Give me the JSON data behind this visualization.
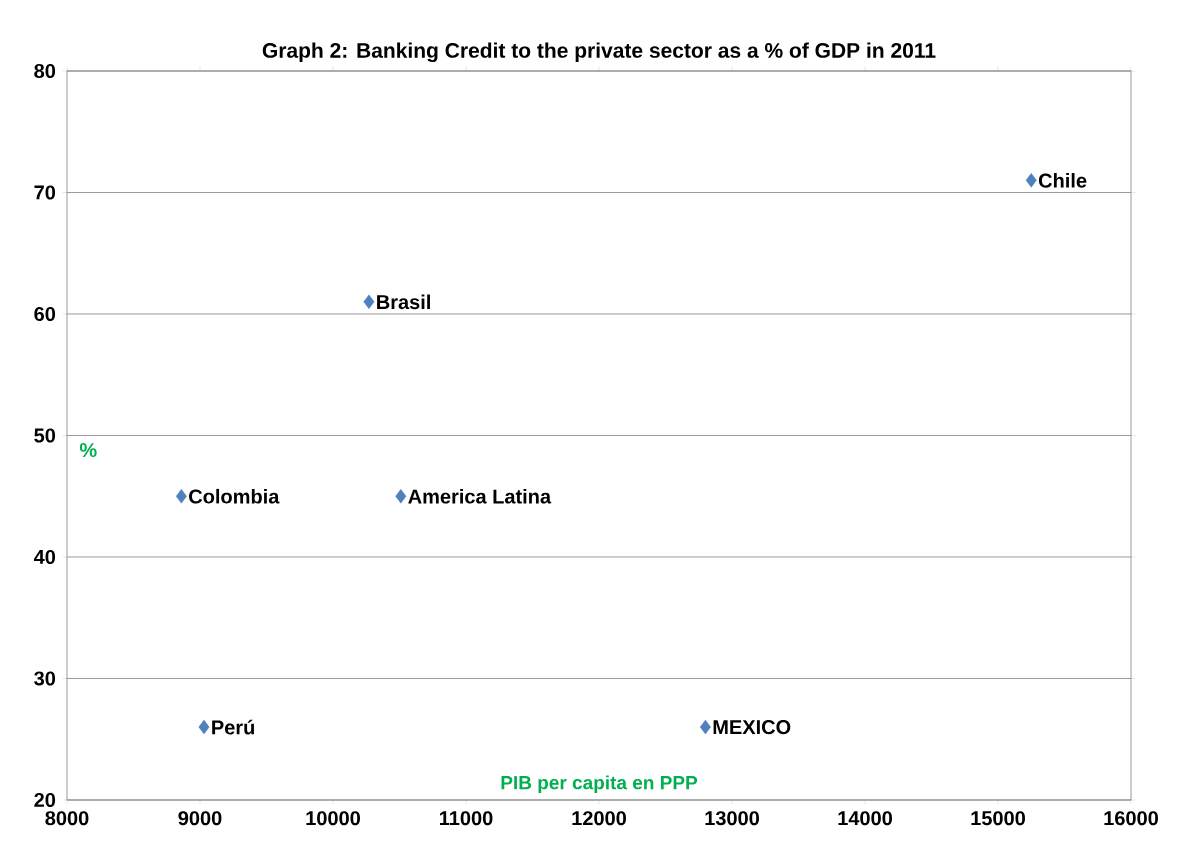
{
  "chart_data": {
    "type": "scatter",
    "title": "Graph 2:  Banking Credit to the private sector as a % of GDP in 2011",
    "xlabel": "PIB per capita en PPP",
    "ylabel": "%",
    "x": [
      15250,
      10270,
      8860,
      10510,
      9030,
      12800
    ],
    "values": [
      71,
      61,
      45,
      45,
      26,
      26
    ],
    "color": "#4f81bd",
    "marker": "diamond",
    "grid": "y",
    "xlim": [
      8000,
      16000
    ],
    "ylim": [
      20,
      80
    ],
    "xticks": [
      8000,
      9000,
      10000,
      11000,
      12000,
      13000,
      14000,
      15000,
      16000
    ],
    "yticks": [
      20,
      30,
      40,
      50,
      60,
      70,
      80
    ],
    "annotations": [
      {
        "text": "Chile",
        "x": 15250,
        "y": 71
      },
      {
        "text": "Brasil",
        "x": 10270,
        "y": 61
      },
      {
        "text": "Colombia",
        "x": 8860,
        "y": 45
      },
      {
        "text": "America Latina",
        "x": 10510,
        "y": 45
      },
      {
        "text": "Perú",
        "x": 9030,
        "y": 26
      },
      {
        "text": "MEXICO",
        "x": 12800,
        "y": 26
      }
    ]
  }
}
